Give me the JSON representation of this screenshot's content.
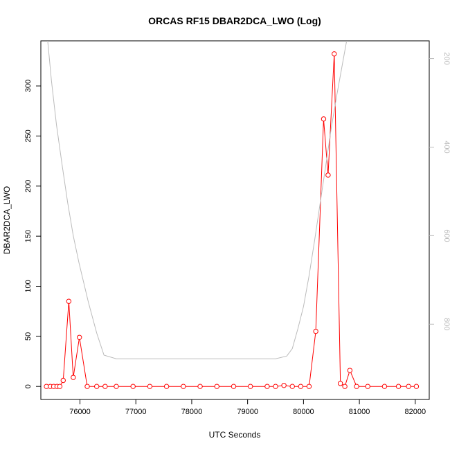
{
  "chart_data": {
    "type": "line",
    "title": "ORCAS RF15 DBAR2DCA_LWO (Log)",
    "xlabel": "UTC Seconds",
    "ylabel": "DBAR2DCA_LWO",
    "xlim": [
      75300,
      82250
    ],
    "ylim": [
      -13,
      345
    ],
    "x_ticks": [
      76000,
      77000,
      78000,
      79000,
      80000,
      81000,
      82000
    ],
    "y_ticks": [
      0,
      50,
      100,
      150,
      200,
      250,
      300
    ],
    "right_axis": {
      "ticks": [
        200,
        400,
        600,
        800
      ],
      "lim": [
        970,
        160
      ],
      "color": "#bbbbbb"
    },
    "series": [
      {
        "color": "#ff0000",
        "marker": "circle",
        "x": [
          75400,
          75470,
          75530,
          75590,
          75640,
          75700,
          75800,
          75880,
          75990,
          76130,
          76300,
          76450,
          76650,
          76950,
          77250,
          77550,
          77850,
          78150,
          78450,
          78750,
          79050,
          79350,
          79500,
          79650,
          79800,
          79950,
          80100,
          80220,
          80360,
          80440,
          80550,
          80660,
          80740,
          80830,
          80950,
          81150,
          81450,
          81700,
          81880,
          82020
        ],
        "values": [
          0,
          0,
          0,
          0,
          0,
          6,
          85,
          9,
          49,
          0,
          0,
          0,
          0,
          0,
          0,
          0,
          0,
          0,
          0,
          0,
          0,
          0,
          0,
          1,
          0,
          0,
          0,
          55,
          267,
          211,
          332,
          3,
          0,
          16,
          0,
          0,
          0,
          0,
          0,
          0
        ]
      },
      {
        "color": "#bbbbbb",
        "marker": "none",
        "axis": "right",
        "x": [
          75400,
          75490,
          75580,
          75680,
          75780,
          75880,
          75980,
          76150,
          76300,
          76430,
          76650,
          77000,
          77500,
          78000,
          78500,
          79000,
          79500,
          79700,
          79800,
          79900,
          80000,
          80100,
          80200,
          80300,
          80400,
          80500,
          80600,
          80700,
          80800,
          80880
        ],
        "values": [
          130,
          250,
          350,
          440,
          525,
          600,
          660,
          750,
          820,
          870,
          878,
          878,
          878,
          878,
          878,
          878,
          878,
          872,
          855,
          810,
          760,
          690,
          610,
          525,
          440,
          355,
          280,
          210,
          140,
          80
        ]
      }
    ]
  }
}
